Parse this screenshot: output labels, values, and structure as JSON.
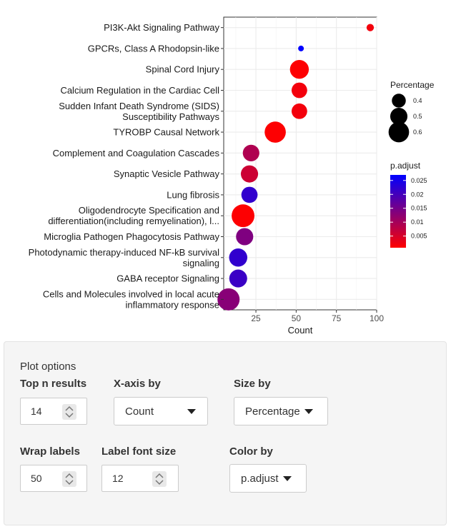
{
  "chart_data": {
    "type": "scatter",
    "categories": [
      "PI3K-Akt Signaling Pathway",
      "GPCRs, Class A Rhodopsin-like",
      "Spinal Cord Injury",
      "Calcium Regulation in the Cardiac Cell",
      "Sudden Infant Death Syndrome (SIDS)\nSusceptibility Pathways",
      "TYROBP Causal Network",
      "Complement and Coagulation Cascades",
      "Synaptic Vesicle Pathway",
      "Lung fibrosis",
      "Oligodendrocyte Specification and\ndifferentiation(including remyelination), l...",
      "Microglia Pathogen Phagocytosis Pathway",
      "Photodynamic therapy-induced NF-kB survival\nsignaling",
      "GABA receptor Signaling",
      "Cells and Molecules involved in local acute\ninflammatory response"
    ],
    "count": [
      96,
      53,
      52,
      52,
      52,
      37,
      22,
      21,
      21,
      17,
      18,
      14,
      14,
      8
    ],
    "percentage": [
      0.2,
      0.15,
      0.55,
      0.45,
      0.45,
      0.62,
      0.48,
      0.5,
      0.47,
      0.67,
      0.5,
      0.53,
      0.52,
      0.65
    ],
    "p_adjust": [
      0.002,
      0.027,
      0.001,
      0.002,
      0.002,
      0.001,
      0.009,
      0.006,
      0.022,
      0.001,
      0.014,
      0.022,
      0.021,
      0.013
    ],
    "xlabel": "Count",
    "xlim": [
      5,
      100
    ],
    "x_ticks": [
      25,
      50,
      75,
      100
    ],
    "size_legend": {
      "title": "Percentage",
      "values": [
        0.4,
        0.5,
        0.6
      ]
    },
    "color_legend": {
      "title": "p.adjust",
      "ticks": [
        0.025,
        0.02,
        0.015,
        0.01,
        0.005
      ],
      "range": [
        0.0008,
        0.027
      ],
      "low_color": "#ff0000",
      "high_color": "#0000ff"
    },
    "grid": true,
    "legend_position": "right"
  },
  "options": {
    "title": "Plot options",
    "top_n": {
      "label": "Top n results",
      "value": "14"
    },
    "x_axis": {
      "label": "X-axis by",
      "value": "Count"
    },
    "size_by": {
      "label": "Size by",
      "value": "Percentage"
    },
    "wrap": {
      "label": "Wrap labels",
      "value": "50"
    },
    "font_size": {
      "label": "Label font size",
      "value": "12"
    },
    "color_by": {
      "label": "Color by",
      "value": "p.adjust"
    }
  }
}
